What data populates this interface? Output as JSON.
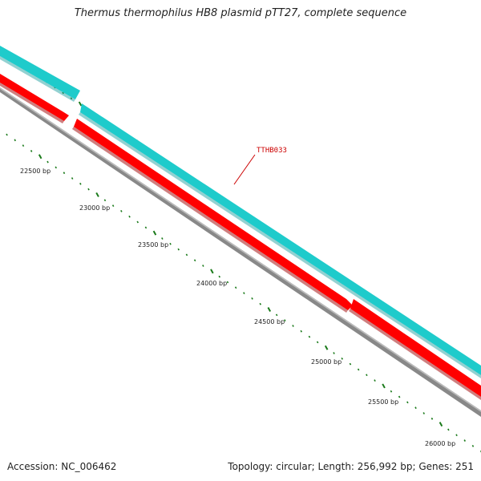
{
  "title": "Thermus thermophilus HB8 plasmid pTT27, complete sequence",
  "accession": "Accession: NC_006462",
  "summary": "Topology: circular; Length: 256,992 bp; Genes: 251",
  "gene_label": "TTHB033",
  "bp_labels": [
    "22500 bp",
    "23000 bp",
    "23500 bp",
    "24000 bp",
    "24500 bp",
    "25000 bp",
    "25500 bp",
    "26000 bp"
  ],
  "colors": {
    "ring_cyan": "#1ecbcb",
    "gene_red": "#ff0000",
    "backbone_gray": "#777777",
    "tick_green": "#1a7a1a",
    "label_red": "#cc0000"
  }
}
